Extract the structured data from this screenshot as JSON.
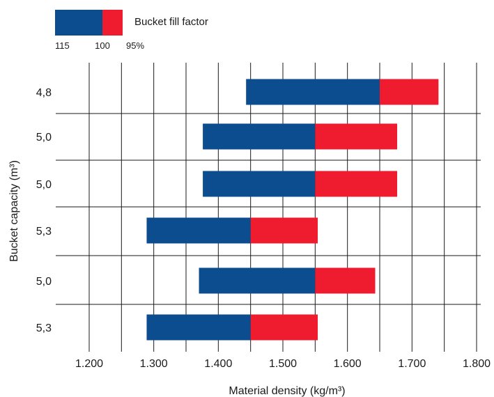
{
  "chart_data": {
    "type": "bar",
    "orientation": "horizontal",
    "stacked_range": true,
    "xlabel": "Material density (kg/m³)",
    "ylabel": "Bucket capacity (m³)",
    "xlim": [
      1150,
      1800
    ],
    "x_ticks": [
      1200,
      1300,
      1400,
      1500,
      1600,
      1700,
      1800
    ],
    "x_tick_labels": [
      "1.200",
      "1.300",
      "1.400",
      "1.500",
      "1.600",
      "1.700",
      "1.800"
    ],
    "grid": true,
    "legend": {
      "placement": "top-left",
      "label": "Bucket fill factor",
      "tick_labels": [
        "115",
        "100",
        "95%"
      ],
      "colors": {
        "high_fill": "#0b4d8f",
        "low_fill": "#ef1b2f"
      }
    },
    "categories": [
      "4,8",
      "5,0",
      "5,0",
      "5,3",
      "5,0",
      "5,3"
    ],
    "series": [
      {
        "name": "115",
        "color": "#0b4d8f",
        "start": [
          1443,
          1376,
          1376,
          1289,
          1370,
          1289
        ],
        "end": [
          1650,
          1550,
          1550,
          1450,
          1550,
          1450
        ]
      },
      {
        "name": "95%",
        "color": "#ef1b2f",
        "start": [
          1650,
          1550,
          1550,
          1450,
          1550,
          1450
        ],
        "end": [
          1741,
          1677,
          1677,
          1554,
          1643,
          1554
        ]
      }
    ]
  }
}
